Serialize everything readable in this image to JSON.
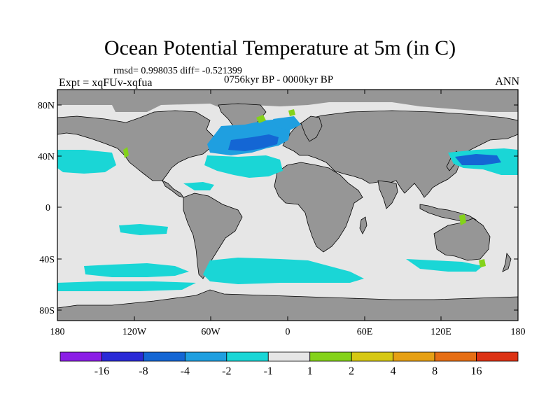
{
  "header": {
    "title": "Ocean Potential Temperature at 5m (in C)",
    "stats": "rmsd= 0.998035  diff= -0.521399",
    "experiment": "Expt = xqFUv-xqfua",
    "period": "0756kyr BP - 0000kyr BP",
    "season": "ANN"
  },
  "map": {
    "lat_ticks": [
      "80N",
      "40N",
      "0",
      "40S",
      "80S"
    ],
    "lon_ticks": [
      "180",
      "120W",
      "60W",
      "0",
      "60E",
      "120E",
      "180"
    ],
    "colors": {
      "land": "#969696",
      "ocean_neutral": "#e6e6e6",
      "coast": "#000000"
    }
  },
  "colorbar": {
    "labels": [
      "-16",
      "-8",
      "-4",
      "-2",
      "-1",
      "1",
      "2",
      "4",
      "8",
      "16"
    ],
    "colors": [
      "#8b1ee6",
      "#2a2ad6",
      "#1466d4",
      "#1f9fe0",
      "#1ad6d6",
      "#e6e6e6",
      "#84d21a",
      "#d6c814",
      "#e6a014",
      "#e66e14",
      "#dc3214"
    ]
  }
}
